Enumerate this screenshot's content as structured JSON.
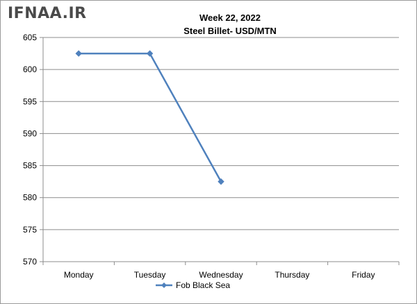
{
  "watermark": "IFNAA.IR",
  "chart_data": {
    "type": "line",
    "title": "Week 22, 2022",
    "subtitle": "Steel Billet- USD/MTN",
    "xlabel": "",
    "ylabel": "",
    "categories": [
      "Monday",
      "Tuesday",
      "Wednesday",
      "Thursday",
      "Friday"
    ],
    "ylim": [
      570,
      605
    ],
    "yticks": [
      570,
      575,
      580,
      585,
      590,
      595,
      600,
      605
    ],
    "grid": true,
    "legend_position": "bottom",
    "series": [
      {
        "name": "Fob Black Sea",
        "color": "#4f81bd",
        "marker": "diamond",
        "values": [
          602.5,
          602.5,
          582.5,
          null,
          null
        ]
      }
    ]
  }
}
